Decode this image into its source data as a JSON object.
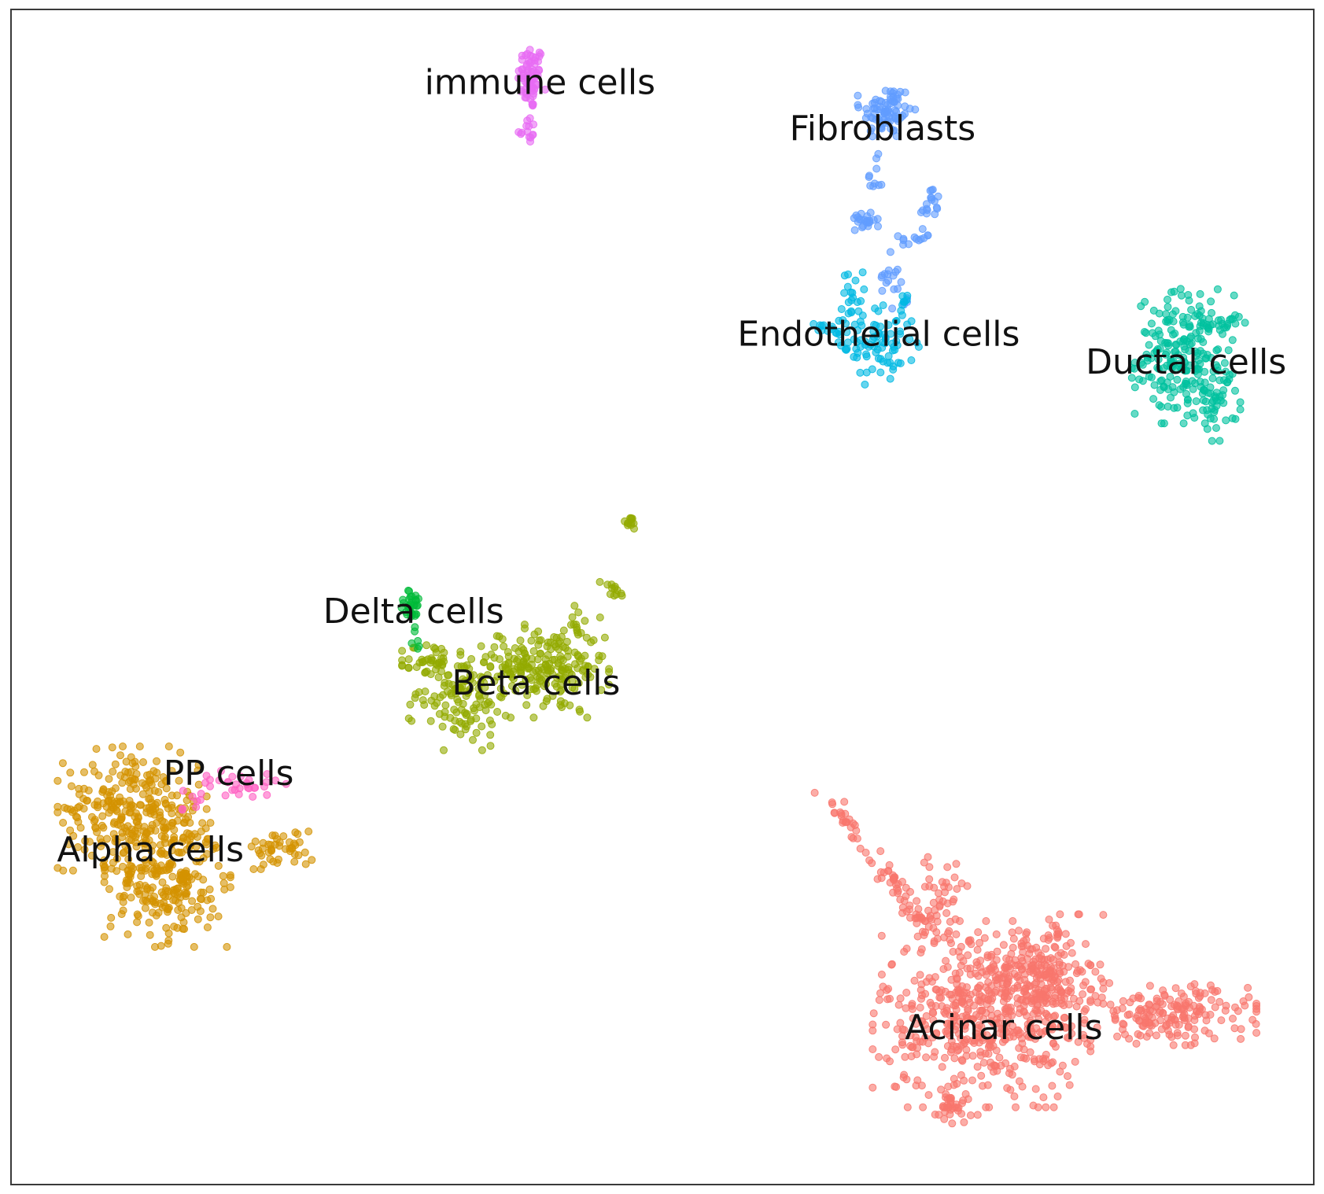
{
  "chart_data": {
    "type": "scatter",
    "title": "",
    "xlabel": "",
    "ylabel": "",
    "xlim": [
      0,
      100
    ],
    "ylim": [
      0,
      100
    ],
    "grid": false,
    "ticks": false,
    "point_style": {
      "radius": 4.5,
      "opacity": 0.6
    },
    "clusters": [
      {
        "name": "immune cells",
        "color": "#E76BF3",
        "label_at": [
          40.6,
          93.6
        ],
        "blobs": [
          {
            "cx": 39.9,
            "cy": 94.2,
            "sx": 0.5,
            "sy": 1.4,
            "n": 70
          },
          {
            "cx": 39.6,
            "cy": 89.8,
            "sx": 0.35,
            "sy": 0.6,
            "n": 14
          }
        ]
      },
      {
        "name": "Fibroblasts",
        "color": "#619CFF",
        "label_at": [
          66.9,
          89.7
        ],
        "blobs": [
          {
            "cx": 67.2,
            "cy": 91.3,
            "sx": 1.0,
            "sy": 1.2,
            "n": 80
          },
          {
            "cx": 65.7,
            "cy": 82.1,
            "sx": 0.6,
            "sy": 0.4,
            "n": 22
          },
          {
            "cx": 69.4,
            "cy": 80.4,
            "sx": 0.6,
            "sy": 0.3,
            "n": 12
          },
          {
            "cx": 70.6,
            "cy": 83.3,
            "sx": 0.4,
            "sy": 0.9,
            "n": 18
          },
          {
            "cx": 66.3,
            "cy": 85.5,
            "sx": 0.3,
            "sy": 1.0,
            "n": 10
          },
          {
            "cx": 67.2,
            "cy": 77.6,
            "sx": 0.5,
            "sy": 0.8,
            "n": 12
          },
          {
            "cx": 68.3,
            "cy": 75.3,
            "sx": 0.3,
            "sy": 0.9,
            "n": 8
          }
        ]
      },
      {
        "name": "Endothelial cells",
        "color": "#00B9E3",
        "label_at": [
          66.6,
          72.2
        ],
        "blobs": [
          {
            "cx": 66.6,
            "cy": 71.6,
            "sx": 1.4,
            "sy": 1.6,
            "n": 80
          },
          {
            "cx": 64.6,
            "cy": 75.1,
            "sx": 0.4,
            "sy": 1.3,
            "n": 25
          },
          {
            "cx": 62.5,
            "cy": 72.8,
            "sx": 0.6,
            "sy": 0.3,
            "n": 12
          },
          {
            "cx": 68.4,
            "cy": 74.7,
            "sx": 0.3,
            "sy": 0.7,
            "n": 8
          }
        ]
      },
      {
        "name": "Ductal cells",
        "color": "#00C19F",
        "label_at": [
          90.2,
          69.8
        ],
        "blobs": [
          {
            "cx": 90.0,
            "cy": 70.5,
            "sx": 1.8,
            "sy": 2.6,
            "n": 220
          },
          {
            "cx": 92.6,
            "cy": 66.8,
            "sx": 0.8,
            "sy": 1.6,
            "n": 40
          },
          {
            "cx": 93.4,
            "cy": 73.4,
            "sx": 0.6,
            "sy": 0.3,
            "n": 12
          }
        ]
      },
      {
        "name": "Beta cells",
        "color": "#93AA00",
        "label_at": [
          40.3,
          42.5
        ],
        "blobs": [
          {
            "cx": 41.5,
            "cy": 43.7,
            "sx": 2.0,
            "sy": 1.8,
            "n": 160
          },
          {
            "cx": 34.5,
            "cy": 41.8,
            "sx": 1.8,
            "sy": 2.2,
            "n": 130
          },
          {
            "cx": 38.4,
            "cy": 44.4,
            "sx": 1.2,
            "sy": 0.8,
            "n": 40
          },
          {
            "cx": 32.0,
            "cy": 44.4,
            "sx": 0.9,
            "sy": 0.9,
            "n": 30
          },
          {
            "cx": 44.2,
            "cy": 47.6,
            "sx": 0.8,
            "sy": 0.8,
            "n": 12
          },
          {
            "cx": 46.2,
            "cy": 50.6,
            "sx": 0.5,
            "sy": 0.6,
            "n": 12
          },
          {
            "cx": 47.5,
            "cy": 56.3,
            "sx": 0.3,
            "sy": 0.3,
            "n": 12
          }
        ]
      },
      {
        "name": "Delta cells",
        "color": "#00BA38",
        "label_at": [
          30.9,
          48.6
        ],
        "blobs": [
          {
            "cx": 30.8,
            "cy": 49.3,
            "sx": 0.5,
            "sy": 0.6,
            "n": 30
          },
          {
            "cx": 31.2,
            "cy": 46.2,
            "sx": 0.2,
            "sy": 0.8,
            "n": 6
          }
        ]
      },
      {
        "name": "Alpha cells",
        "color": "#D39200",
        "label_at": [
          10.7,
          28.3
        ],
        "blobs": [
          {
            "cx": 9.3,
            "cy": 32.0,
            "sx": 2.6,
            "sy": 2.4,
            "n": 280
          },
          {
            "cx": 12.0,
            "cy": 25.5,
            "sx": 2.2,
            "sy": 2.4,
            "n": 220
          },
          {
            "cx": 20.7,
            "cy": 28.6,
            "sx": 1.3,
            "sy": 0.8,
            "n": 45
          },
          {
            "cx": 14.0,
            "cy": 30.0,
            "sx": 0.8,
            "sy": 1.4,
            "n": 18
          }
        ]
      },
      {
        "name": "PP cells",
        "color": "#FF61C3",
        "label_at": [
          16.7,
          34.8
        ],
        "blobs": [
          {
            "cx": 17.6,
            "cy": 34.1,
            "sx": 1.6,
            "sy": 0.5,
            "n": 30
          },
          {
            "cx": 13.8,
            "cy": 32.7,
            "sx": 0.6,
            "sy": 0.5,
            "n": 8
          }
        ]
      },
      {
        "name": "Acinar cells",
        "color": "#F8766D",
        "label_at": [
          76.2,
          13.2
        ],
        "blobs": [
          {
            "cx": 74.5,
            "cy": 14.5,
            "sx": 3.8,
            "sy": 3.6,
            "n": 520
          },
          {
            "cx": 79.0,
            "cy": 17.5,
            "sx": 2.2,
            "sy": 2.5,
            "n": 220
          },
          {
            "cx": 89.0,
            "cy": 14.5,
            "sx": 3.0,
            "sy": 1.2,
            "n": 180
          },
          {
            "cx": 71.5,
            "cy": 24.5,
            "sx": 1.4,
            "sy": 1.6,
            "n": 45
          },
          {
            "cx": 72.0,
            "cy": 6.5,
            "sx": 1.0,
            "sy": 1.0,
            "n": 30
          }
        ],
        "paths": [
          {
            "from": [
              62.3,
              33.6
            ],
            "to": [
              70.5,
              21.5
            ],
            "n": 70,
            "jitter": 0.35
          }
        ]
      }
    ]
  }
}
